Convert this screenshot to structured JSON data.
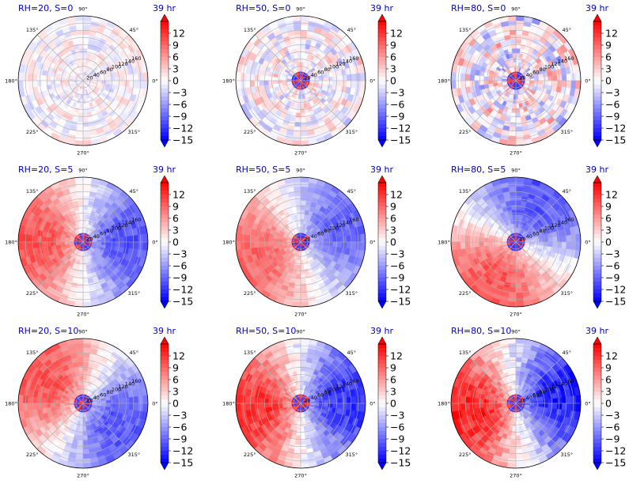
{
  "chart_data": {
    "type": "heatmap",
    "projection": "polar",
    "layout": "3x3",
    "time_label": "39 hr",
    "colormap": {
      "name": "bwr",
      "min_color": "#0000ff",
      "mid_color": "#ffffff",
      "max_color": "#ff0000"
    },
    "clim": [
      -15,
      15
    ],
    "colorbar_ticks": [
      "12",
      "9",
      "6",
      "3",
      "0",
      "−3",
      "−6",
      "−9",
      "−12",
      "−15"
    ],
    "colorbar_tick_values": [
      12,
      9,
      6,
      3,
      0,
      -3,
      -6,
      -9,
      -12,
      -15
    ],
    "colorbar_extend": "both",
    "angle_ticks": [
      "90°",
      "45°",
      "0°",
      "315°",
      "270°",
      "225°",
      "180°",
      "135°"
    ],
    "angle_tick_values": [
      90,
      45,
      0,
      315,
      270,
      225,
      180,
      135
    ],
    "radial_ticks": [
      "20",
      "40",
      "60",
      "80",
      "100",
      "120",
      "140",
      "160"
    ],
    "radial_tick_values": [
      20,
      40,
      60,
      80,
      100,
      120,
      140,
      160
    ],
    "rlim": [
      0,
      180
    ],
    "grid": true,
    "panels": [
      {
        "title": "RH=20, S=0",
        "pattern": "noise",
        "amplitude": 4,
        "phase": 0,
        "core": 0
      },
      {
        "title": "RH=50, S=0",
        "pattern": "noise",
        "amplitude": 6,
        "phase": 0,
        "core": 1
      },
      {
        "title": "RH=80, S=0",
        "pattern": "noise",
        "amplitude": 9,
        "phase": 0,
        "core": 2
      },
      {
        "title": "RH=20, S=5",
        "pattern": "dipole",
        "amplitude": 10,
        "phase": 180,
        "core": 1
      },
      {
        "title": "RH=50, S=5",
        "pattern": "dipole",
        "amplitude": 9,
        "phase": 200,
        "core": 1
      },
      {
        "title": "RH=80, S=5",
        "pattern": "dipole",
        "amplitude": 10,
        "phase": 240,
        "core": 2
      },
      {
        "title": "RH=20, S=10",
        "pattern": "dipole",
        "amplitude": 10,
        "phase": 150,
        "core": 1
      },
      {
        "title": "RH=50, S=10",
        "pattern": "dipole",
        "amplitude": 12,
        "phase": 185,
        "core": 1
      },
      {
        "title": "RH=80, S=10",
        "pattern": "dipole",
        "amplitude": 13,
        "phase": 190,
        "core": 1
      }
    ]
  }
}
